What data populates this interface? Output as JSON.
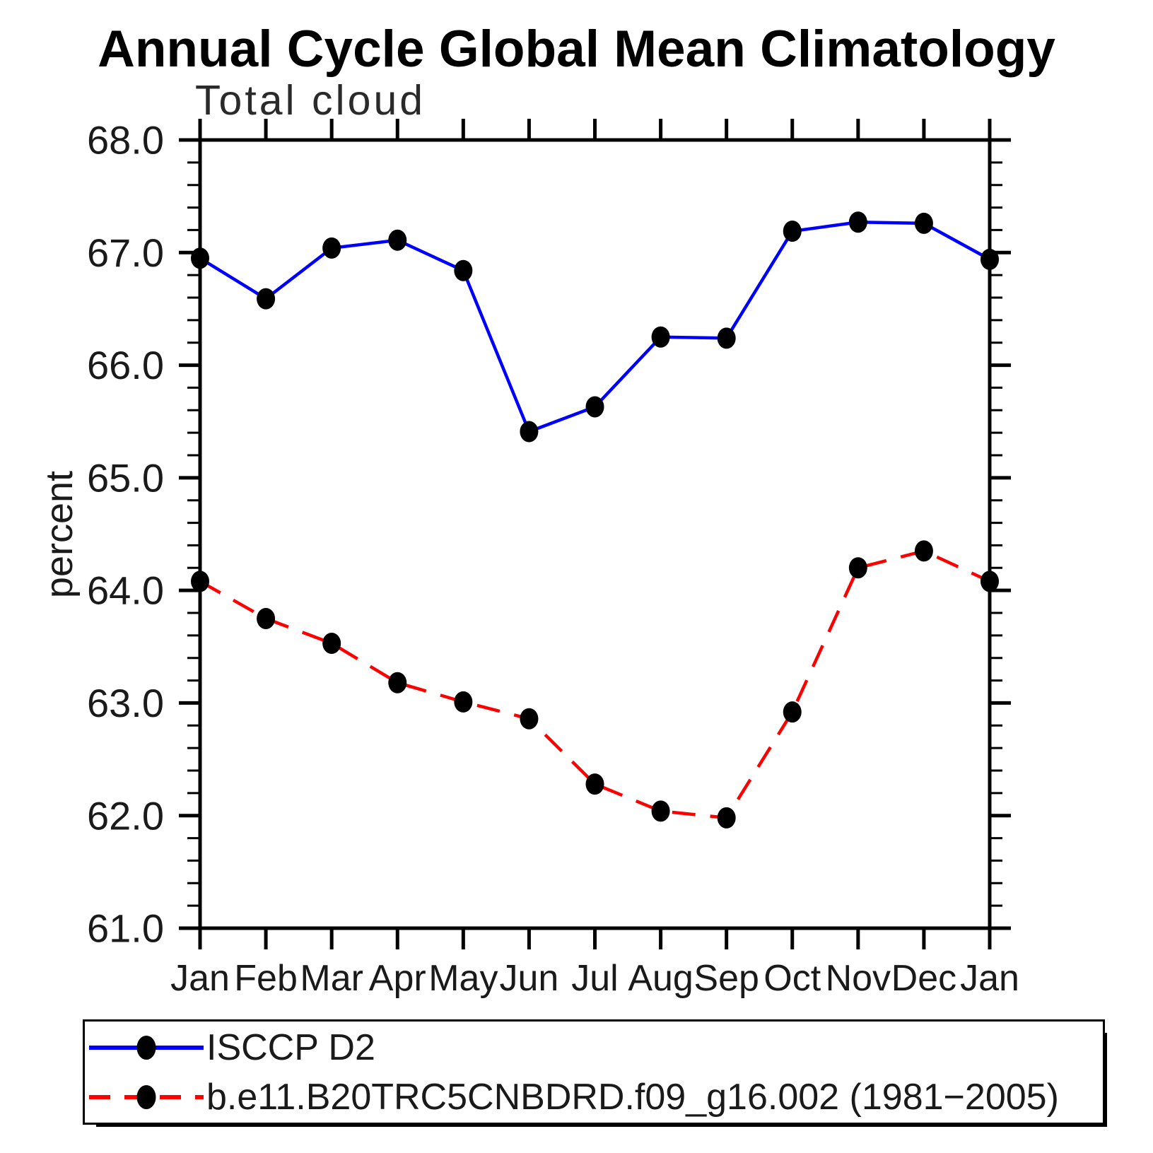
{
  "chart_data": {
    "type": "line",
    "title": "Annual Cycle Global Mean Climatology",
    "subtitle": "Total cloud",
    "ylabel": "percent",
    "xlabel": "",
    "ylim": [
      61.0,
      68.0
    ],
    "y_major_step": 1.0,
    "y_minor_step": 0.2,
    "grid": false,
    "legend_position": "bottom",
    "y_tick_labels": [
      "68.0",
      "67.0",
      "66.0",
      "65.0",
      "64.0",
      "63.0",
      "62.0",
      "61.0"
    ],
    "x_tick_labels": [
      "Jan",
      "Feb",
      "Mar",
      "Apr",
      "May",
      "Jun",
      "Jul",
      "Aug",
      "Sep",
      "Oct",
      "Nov",
      "Dec",
      "Jan"
    ],
    "series": [
      {
        "name": "ISCCP D2",
        "color": "#0000ff",
        "line_style": "solid",
        "marker": "filled-circle",
        "marker_color": "#000000",
        "values": [
          66.95,
          66.59,
          67.04,
          67.11,
          66.84,
          65.41,
          65.63,
          66.25,
          66.24,
          67.19,
          67.27,
          67.26,
          66.94
        ]
      },
      {
        "name": "b.e11.B20TRC5CNBDRD.f09_g16.002 (1981−2005)",
        "color": "#ff0000",
        "line_style": "dashed",
        "marker": "filled-circle",
        "marker_color": "#000000",
        "values": [
          64.08,
          63.75,
          63.53,
          63.18,
          63.01,
          62.86,
          62.28,
          62.04,
          61.98,
          62.92,
          64.2,
          64.35,
          64.08
        ]
      }
    ]
  }
}
